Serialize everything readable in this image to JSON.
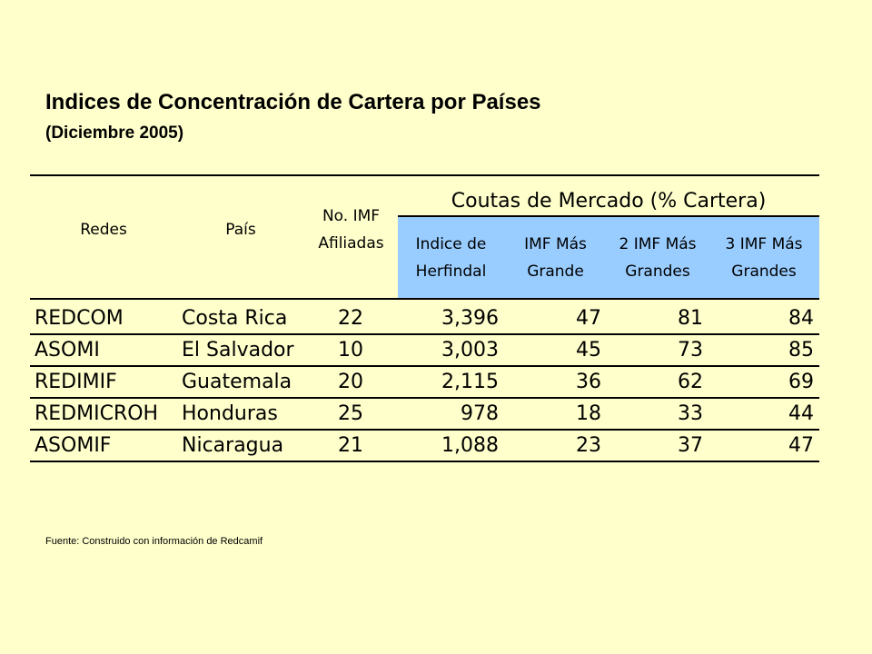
{
  "title": "Indices de Concentración de Cartera por Países",
  "subtitle": "(Diciembre 2005)",
  "source": "Fuente: Construido con información de Redcamif",
  "table": {
    "group_header": "Coutas de Mercado (% Cartera)",
    "headers": {
      "redes": "Redes",
      "pais": "País",
      "imf_line1": "No. IMF",
      "imf_line2": "Afiliadas",
      "herf_line1": "Indice de",
      "herf_line2": "Herfindal",
      "one_line1": "IMF Más",
      "one_line2": "Grande",
      "two_line1": "2 IMF Más",
      "two_line2": "Grandes",
      "three_line1": "3 IMF Más",
      "three_line2": "Grandes"
    },
    "rows": [
      {
        "red": "REDCOM",
        "pais": "Costa Rica",
        "imf": "22",
        "herfindal": "3,396",
        "imf1": "47",
        "imf2": "81",
        "imf3": "84"
      },
      {
        "red": "ASOMI",
        "pais": "El Salvador",
        "imf": "10",
        "herfindal": "3,003",
        "imf1": "45",
        "imf2": "73",
        "imf3": "85"
      },
      {
        "red": "REDIMIF",
        "pais": "Guatemala",
        "imf": "20",
        "herfindal": "2,115",
        "imf1": "36",
        "imf2": "62",
        "imf3": "69"
      },
      {
        "red": "REDMICROH",
        "pais": "Honduras",
        "imf": "25",
        "herfindal": "978",
        "imf1": "18",
        "imf2": "33",
        "imf3": "44"
      },
      {
        "red": "ASOMIF",
        "pais": "Nicaragua",
        "imf": "21",
        "herfindal": "1,088",
        "imf1": "23",
        "imf2": "37",
        "imf3": "47"
      }
    ]
  },
  "colors": {
    "background": "#FFFFCC",
    "header_highlight": "#99CCFF"
  }
}
